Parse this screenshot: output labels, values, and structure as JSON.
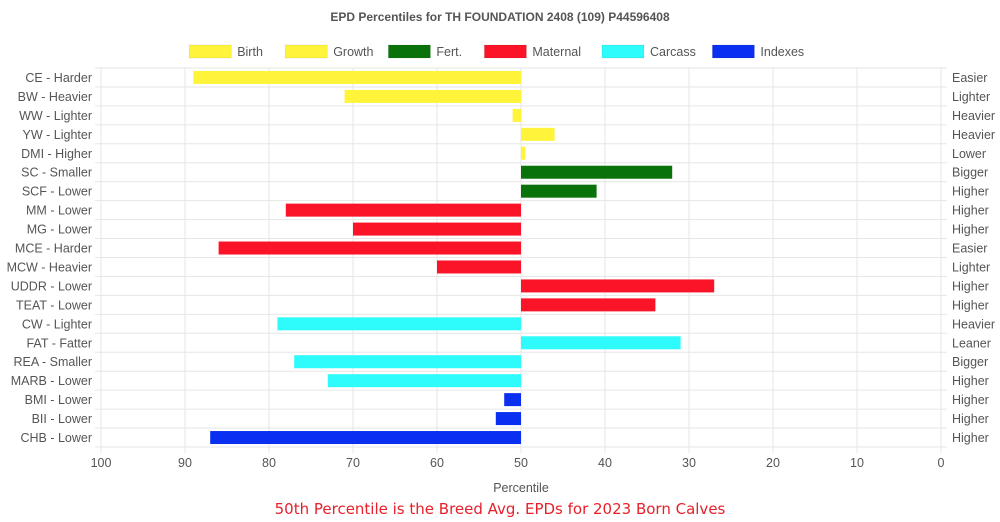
{
  "chart_data": {
    "type": "bar",
    "orientation": "horizontal",
    "title": "EPD Percentiles for TH FOUNDATION 2408 (109) P44596408",
    "xlabel": "Percentile",
    "xlim": [
      100,
      0
    ],
    "x_reversed": true,
    "baseline": 50,
    "xticks": [
      "100",
      "90",
      "80",
      "70",
      "60",
      "50",
      "40",
      "30",
      "20",
      "10",
      "0"
    ],
    "grid": true,
    "legend_position": "top",
    "legend": [
      {
        "name": "Birth",
        "color": "#fff43a"
      },
      {
        "name": "Growth",
        "color": "#fff43a"
      },
      {
        "name": "Fert.",
        "color": "#0a720a"
      },
      {
        "name": "Maternal",
        "color": "#fb1428"
      },
      {
        "name": "Carcass",
        "color": "#2efcfc"
      },
      {
        "name": "Indexes",
        "color": "#0a2ff0"
      }
    ],
    "categories": [
      "CE - Harder",
      "BW - Heavier",
      "WW - Lighter",
      "YW - Lighter",
      "DMI - Higher",
      "SC - Smaller",
      "SCF - Lower",
      "MM - Lower",
      "MG - Lower",
      "MCE - Harder",
      "MCW - Heavier",
      "UDDR - Lower",
      "TEAT - Lower",
      "CW - Lighter",
      "FAT - Fatter",
      "REA - Smaller",
      "MARB - Lower",
      "BMI - Lower",
      "BII - Lower",
      "CHB - Lower"
    ],
    "right_labels": [
      "Easier",
      "Lighter",
      "Heavier",
      "Heavier",
      "Lower",
      "Bigger",
      "Higher",
      "Higher",
      "Higher",
      "Easier",
      "Lighter",
      "Higher",
      "Higher",
      "Heavier",
      "Leaner",
      "Bigger",
      "Higher",
      "Higher",
      "Higher",
      "Higher"
    ],
    "values": [
      89,
      71,
      51,
      46,
      49.5,
      32,
      41,
      78,
      70,
      86,
      60,
      27,
      34,
      79,
      31,
      77,
      73,
      52,
      53,
      87
    ],
    "groups": [
      "Birth",
      "Birth",
      "Growth",
      "Growth",
      "Growth",
      "Fert.",
      "Fert.",
      "Maternal",
      "Maternal",
      "Maternal",
      "Maternal",
      "Maternal",
      "Maternal",
      "Carcass",
      "Carcass",
      "Carcass",
      "Carcass",
      "Indexes",
      "Indexes",
      "Indexes"
    ]
  },
  "footnote": "50th Percentile is the Breed Avg. EPDs for 2023 Born Calves"
}
